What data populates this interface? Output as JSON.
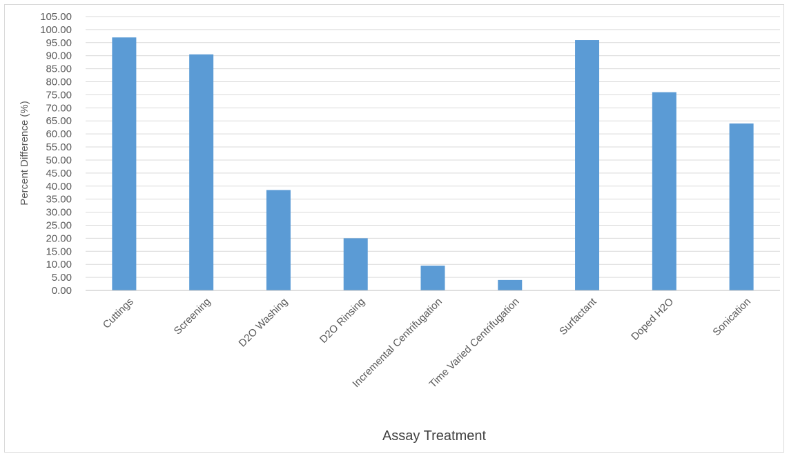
{
  "chart_data": {
    "type": "bar",
    "title": "",
    "xlabel": "Assay Treatment",
    "ylabel": "Percent Difference (%)",
    "ylim": [
      0,
      105
    ],
    "ytick_step": 5,
    "ytick_labels": [
      "0.00",
      "5.00",
      "10.00",
      "15.00",
      "20.00",
      "25.00",
      "30.00",
      "35.00",
      "40.00",
      "45.00",
      "50.00",
      "55.00",
      "60.00",
      "65.00",
      "70.00",
      "75.00",
      "80.00",
      "85.00",
      "90.00",
      "95.00",
      "100.00",
      "105.00"
    ],
    "grid": true,
    "legend": "none",
    "bar_color": "#5b9bd5",
    "categories": [
      "Cuttings",
      "Screening",
      "D2O Washing",
      "D2O Rinsing",
      "Incremental Centrifugation",
      "Time Varied Centrifugation",
      "Surfactant",
      "Doped H2O",
      "Sonication"
    ],
    "values": [
      97.0,
      90.5,
      38.5,
      20.0,
      9.5,
      4.0,
      96.0,
      76.0,
      64.0
    ]
  }
}
